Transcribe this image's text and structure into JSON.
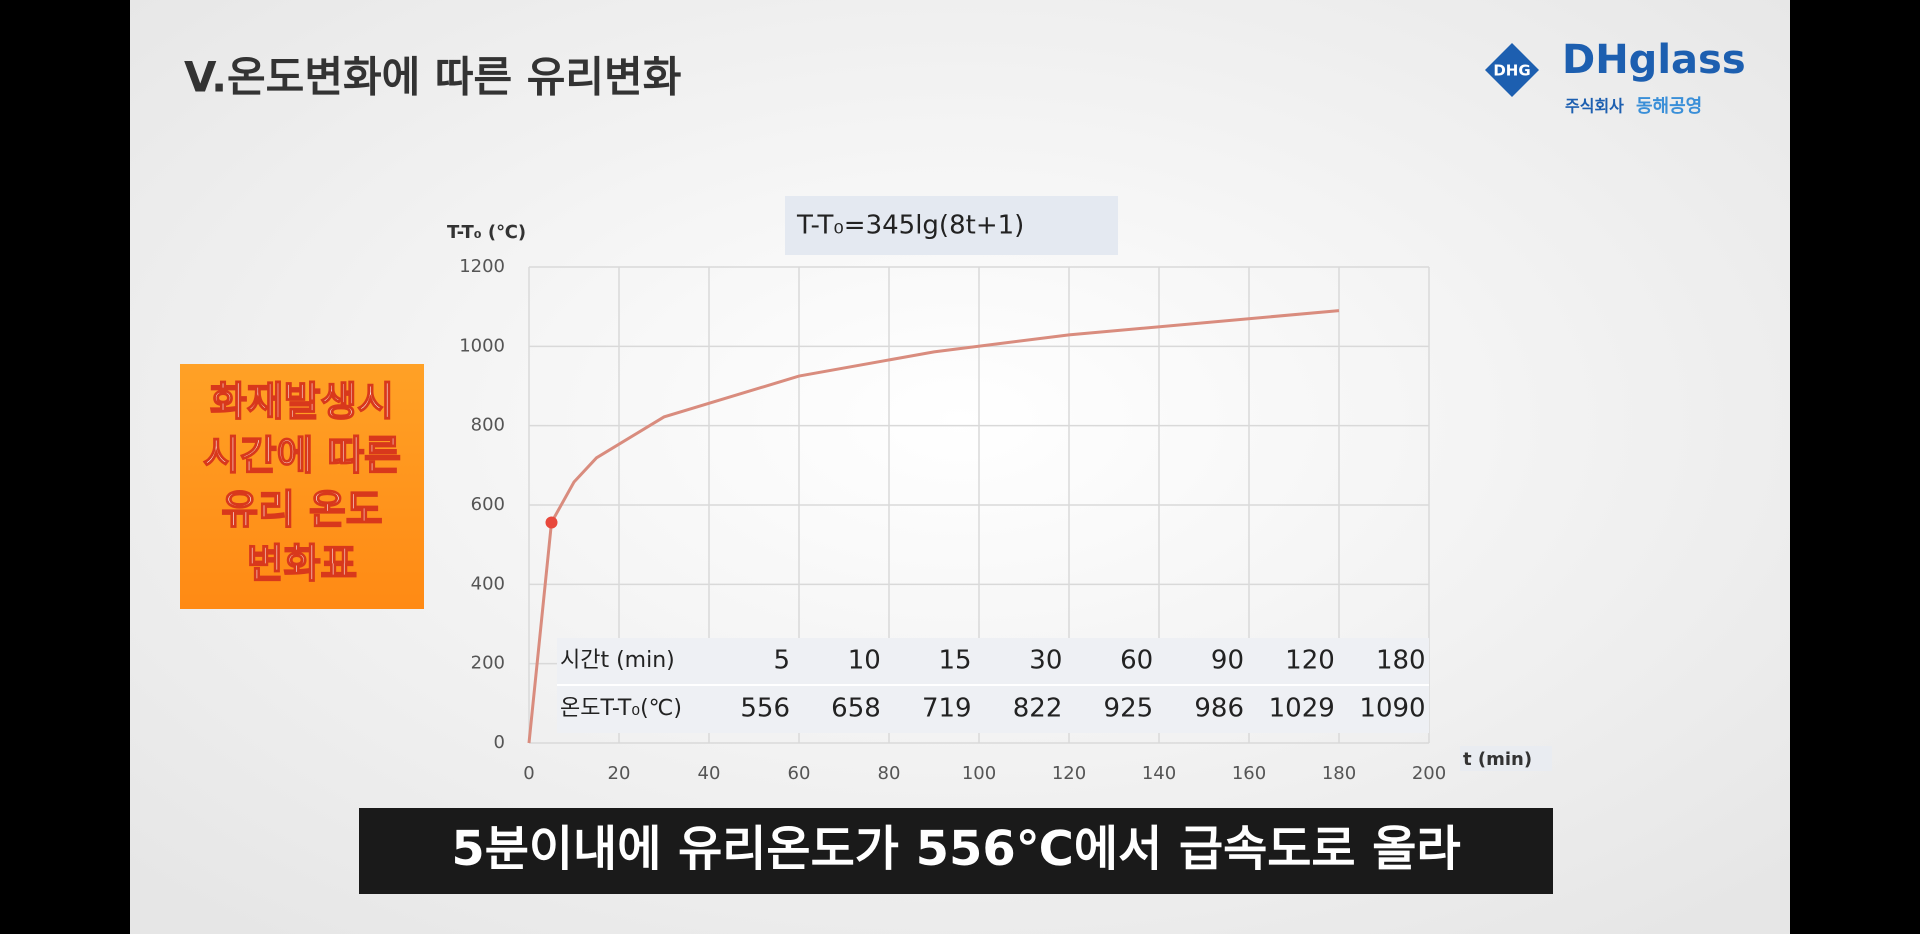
{
  "slide": {
    "title": "V.온도변화에 따른 유리변화",
    "logo": {
      "badge": "DHG",
      "brand": "DHglass",
      "company": "주식회사",
      "company_name": "동해공영"
    },
    "callout": [
      "화재발생시",
      "시간에 따른",
      "유리 온도",
      "변화표"
    ],
    "caption": "5분이내에 유리온도가 556℃에서 급속도로 올라"
  },
  "chart_data": {
    "type": "line",
    "formula": "T-T₀=345lg(8t+1)",
    "y_label": "T-T₀ (℃)",
    "x_label": "t (min)",
    "x": [
      0,
      5,
      10,
      15,
      30,
      60,
      90,
      120,
      180
    ],
    "series": [
      {
        "color": "#d98c7e",
        "values": [
          0,
          556,
          658,
          719,
          822,
          925,
          986,
          1029,
          1090
        ]
      }
    ],
    "highlight_point": 1,
    "highlight_color": "#e8483c",
    "xlim": [
      0,
      200
    ],
    "xticks": [
      0,
      20,
      40,
      60,
      80,
      100,
      120,
      140,
      160,
      180,
      200
    ],
    "ylim": [
      0,
      1200
    ],
    "yticks": [
      0,
      200,
      400,
      600,
      800,
      1000,
      1200
    ],
    "grid": true,
    "table": {
      "row_labels": [
        "시간t (min)",
        "온도T-T₀(℃)"
      ]
    }
  }
}
